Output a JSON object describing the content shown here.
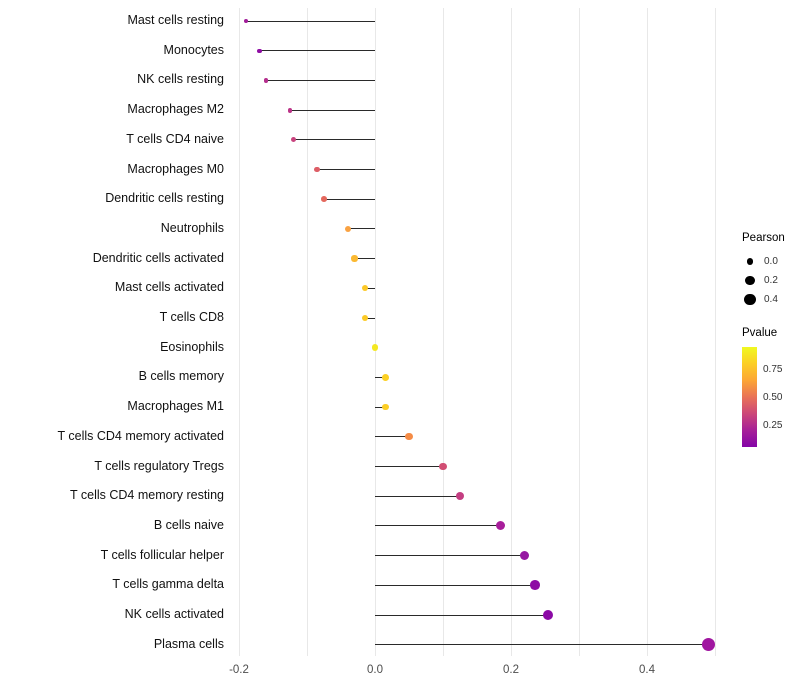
{
  "chart_data": {
    "type": "scatter",
    "variant": "lollipop",
    "title": "",
    "subtitle": "",
    "xlabel": "",
    "ylabel": "",
    "xlim": [
      -0.27,
      0.55
    ],
    "grid": true,
    "x_ticks": [
      -0.2,
      0.0,
      0.2,
      0.4
    ],
    "x_tick_labels": [
      "-0.2",
      "0.0",
      "0.2",
      "0.4"
    ],
    "gridline_values": [
      -0.2,
      -0.1,
      0.0,
      0.1,
      0.2,
      0.3,
      0.4,
      0.5
    ],
    "points": [
      {
        "label": "Mast cells resting",
        "pearson": -0.19,
        "pvalue": 0.28,
        "color": "#a21d9a"
      },
      {
        "label": "Monocytes",
        "pearson": -0.17,
        "pvalue": 0.2,
        "color": "#8f0da4"
      },
      {
        "label": "NK cells resting",
        "pearson": -0.16,
        "pvalue": 0.33,
        "color": "#b42e8d"
      },
      {
        "label": "Macrophages M2",
        "pearson": -0.125,
        "pvalue": 0.38,
        "color": "#bb3488"
      },
      {
        "label": "T cells CD4 naive",
        "pearson": -0.12,
        "pvalue": 0.43,
        "color": "#c8437e"
      },
      {
        "label": "Macrophages M0",
        "pearson": -0.085,
        "pvalue": 0.57,
        "color": "#dd5e66"
      },
      {
        "label": "Dendritic cells resting",
        "pearson": -0.075,
        "pvalue": 0.62,
        "color": "#e4685d"
      },
      {
        "label": "Neutrophils",
        "pearson": -0.04,
        "pvalue": 0.78,
        "color": "#f9a242"
      },
      {
        "label": "Dendritic cells activated",
        "pearson": -0.03,
        "pvalue": 0.82,
        "color": "#fbb932"
      },
      {
        "label": "Mast cells activated",
        "pearson": -0.015,
        "pvalue": 0.87,
        "color": "#fcc827"
      },
      {
        "label": "T cells CD8",
        "pearson": -0.015,
        "pvalue": 0.87,
        "color": "#fcca26"
      },
      {
        "label": "Eosinophils",
        "pearson": 0.0,
        "pvalue": 0.95,
        "color": "#f4e822"
      },
      {
        "label": "B cells memory",
        "pearson": 0.015,
        "pvalue": 0.88,
        "color": "#fcd025"
      },
      {
        "label": "Macrophages M1",
        "pearson": 0.015,
        "pvalue": 0.87,
        "color": "#fcce25"
      },
      {
        "label": "T cells CD4 memory activated",
        "pearson": 0.05,
        "pvalue": 0.7,
        "color": "#f58c46"
      },
      {
        "label": "T cells regulatory  Tregs",
        "pearson": 0.1,
        "pvalue": 0.48,
        "color": "#d14e73"
      },
      {
        "label": "T cells CD4 memory resting",
        "pearson": 0.125,
        "pvalue": 0.4,
        "color": "#c43e82"
      },
      {
        "label": "B cells naive",
        "pearson": 0.185,
        "pvalue": 0.27,
        "color": "#a81e9b"
      },
      {
        "label": "T cells follicular helper",
        "pearson": 0.22,
        "pvalue": 0.22,
        "color": "#9619a2"
      },
      {
        "label": "T cells gamma delta",
        "pearson": 0.235,
        "pvalue": 0.18,
        "color": "#8e0ca4"
      },
      {
        "label": "NK cells activated",
        "pearson": 0.255,
        "pvalue": 0.17,
        "color": "#8b09a5"
      },
      {
        "label": "Plasma cells",
        "pearson": 0.49,
        "pvalue": 0.12,
        "color": "#a016a0"
      }
    ],
    "legend": {
      "size_title": "Pearson",
      "size_ticks": [
        0.0,
        0.2,
        0.4
      ],
      "size_tick_labels": [
        "0.0",
        "0.2",
        "0.4"
      ],
      "color_title": "Pvalue",
      "color_ticks": [
        0.75,
        0.5,
        0.25
      ],
      "color_tick_labels": [
        "0.75",
        "0.50",
        "0.25"
      ],
      "color_scale_range": [
        0.05,
        0.95
      ],
      "gradient_top_to_bottom": [
        "#f0f921",
        "#fcce25",
        "#fca636",
        "#e97257",
        "#cc4778",
        "#a62098",
        "#8405a7"
      ]
    }
  }
}
